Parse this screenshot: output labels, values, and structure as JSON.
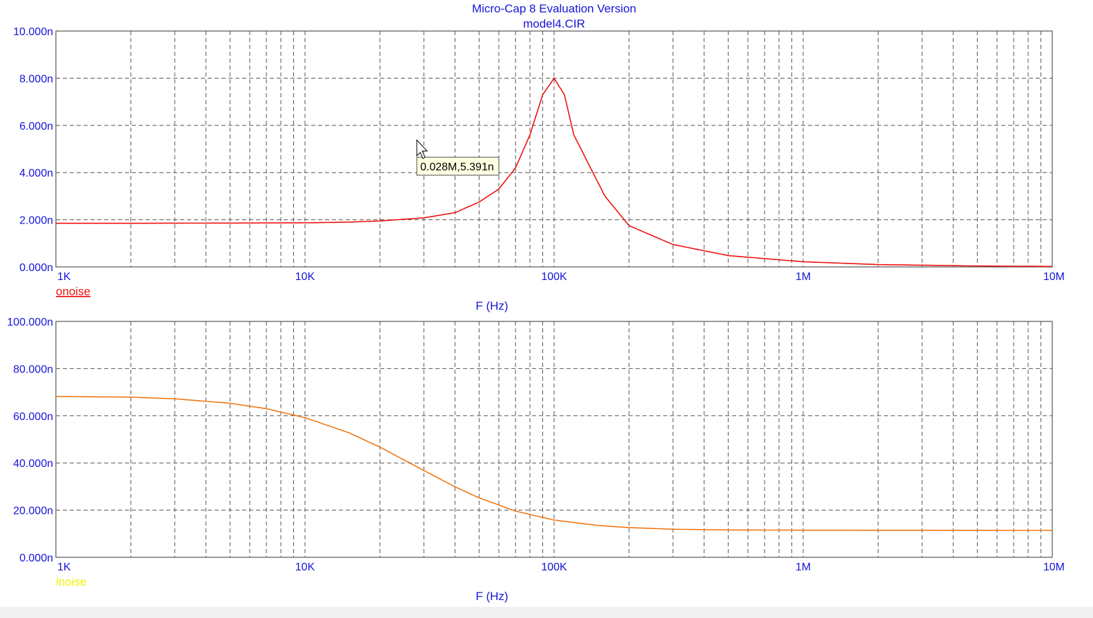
{
  "title": "Micro-Cap 8 Evaluation Version",
  "subtitle": "model4.CIR",
  "tooltip": "0.028M,5.391n",
  "chart_data": [
    {
      "type": "line",
      "xscale": "log",
      "xlim": [
        1000,
        10000000
      ],
      "ylim": [
        0,
        10
      ],
      "yunit": "n",
      "xticks": [
        "1K",
        "10K",
        "100K",
        "1M",
        "10M"
      ],
      "yticks": [
        "0.000n",
        "2.000n",
        "4.000n",
        "6.000n",
        "8.000n",
        "10.000n"
      ],
      "xlabel": "F (Hz)",
      "grid": true,
      "legend_position": "bottom-left",
      "series": [
        {
          "name": "onoise",
          "color": "#ee1111",
          "legend_underline": true,
          "x": [
            1000,
            2000,
            5000,
            10000,
            15000,
            20000,
            30000,
            40000,
            50000,
            60000,
            70000,
            80000,
            90000,
            100000,
            110000,
            120000,
            140000,
            160000,
            200000,
            300000,
            500000,
            1000000,
            2000000,
            5000000,
            10000000
          ],
          "values": [
            1.85,
            1.85,
            1.86,
            1.87,
            1.9,
            1.95,
            2.08,
            2.3,
            2.75,
            3.3,
            4.2,
            5.6,
            7.3,
            8.0,
            7.3,
            5.6,
            4.2,
            3.0,
            1.75,
            0.95,
            0.48,
            0.22,
            0.1,
            0.04,
            0.02
          ]
        }
      ]
    },
    {
      "type": "line",
      "xscale": "log",
      "xlim": [
        1000,
        10000000
      ],
      "ylim": [
        0,
        100
      ],
      "yunit": "n",
      "xticks": [
        "1K",
        "10K",
        "100K",
        "1M",
        "10M"
      ],
      "yticks": [
        "0.000n",
        "20.000n",
        "40.000n",
        "60.000n",
        "80.000n",
        "100.000n"
      ],
      "xlabel": "F (Hz)",
      "grid": true,
      "legend_position": "bottom-left",
      "series": [
        {
          "name": "inoise",
          "color": "#f07814",
          "legend_color": "#f2f200",
          "x": [
            1000,
            2000,
            3000,
            5000,
            7000,
            10000,
            15000,
            20000,
            30000,
            40000,
            50000,
            70000,
            100000,
            150000,
            200000,
            300000,
            500000,
            1000000,
            10000000
          ],
          "values": [
            68.2,
            67.9,
            67.2,
            65.3,
            63.0,
            59.2,
            52.8,
            46.7,
            36.8,
            29.9,
            25.2,
            19.6,
            15.8,
            13.5,
            12.6,
            11.9,
            11.6,
            11.5,
            11.4
          ]
        }
      ]
    }
  ]
}
